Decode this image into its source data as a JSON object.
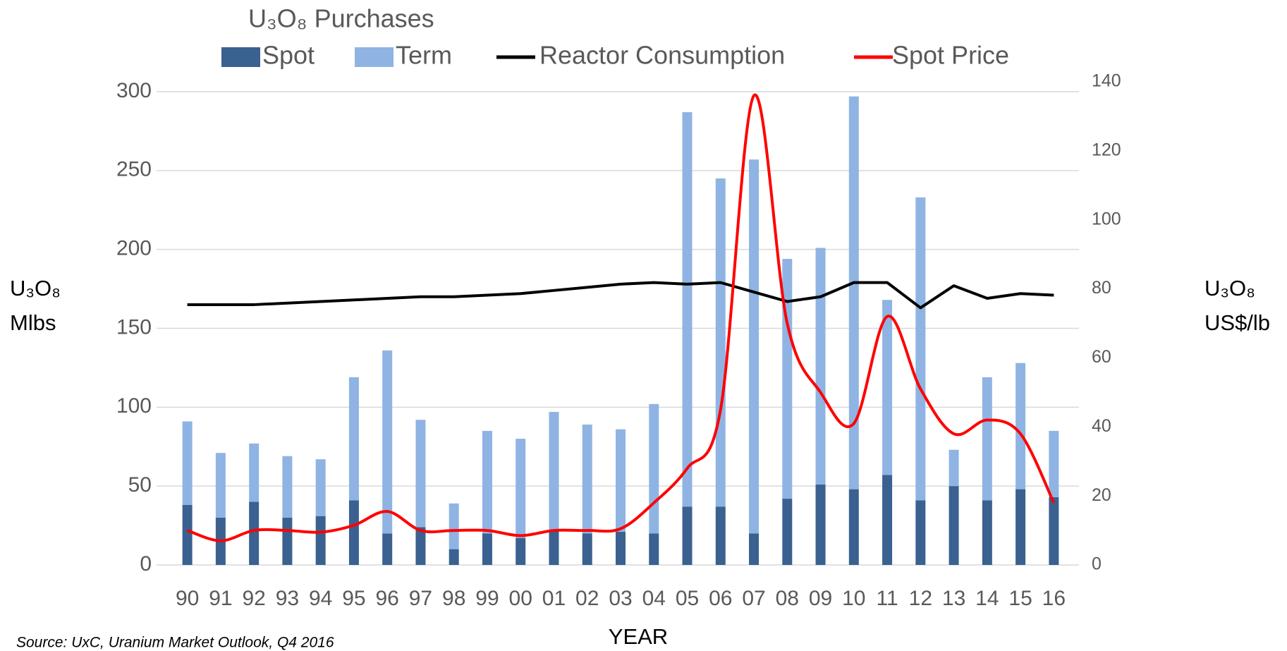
{
  "chart_data": {
    "type": "bar_line",
    "legend_title": "U₃O₈ Purchases",
    "ylabel_lines": [
      "U₃O₈",
      "Mlbs"
    ],
    "y2label_lines": [
      "U₃O₈",
      "US$/lb"
    ],
    "xlabel": "YEAR",
    "source": "Source: UxC, Uranium Market Outlook, Q4 2016",
    "categories": [
      "90",
      "91",
      "92",
      "93",
      "94",
      "95",
      "96",
      "97",
      "98",
      "99",
      "00",
      "01",
      "02",
      "03",
      "04",
      "05",
      "06",
      "07",
      "08",
      "09",
      "10",
      "11",
      "12",
      "13",
      "14",
      "15",
      "16"
    ],
    "series": [
      {
        "name": "Spot",
        "kind": "bar",
        "color": "#3a6190",
        "values": [
          38,
          30,
          40,
          30,
          31,
          41,
          20,
          24,
          10,
          20,
          17,
          22,
          20,
          21,
          20,
          37,
          37,
          20,
          42,
          51,
          48,
          57,
          41,
          50,
          41,
          48,
          43
        ]
      },
      {
        "name": "Term",
        "kind": "bar",
        "color": "#8fb4e3",
        "values": [
          53,
          41,
          37,
          39,
          36,
          78,
          116,
          68,
          29,
          65,
          63,
          75,
          69,
          65,
          82,
          250,
          208,
          237,
          152,
          150,
          249,
          111,
          192,
          23,
          78,
          80,
          42
        ]
      },
      {
        "name": "Reactor Consumption",
        "kind": "line",
        "color": "#000000",
        "values": [
          165,
          165,
          165,
          166,
          167,
          168,
          169,
          170,
          170,
          171,
          172,
          174,
          176,
          178,
          179,
          178,
          179,
          173,
          167,
          170,
          179,
          179,
          163,
          177,
          169,
          172,
          171
        ]
      },
      {
        "name": "Spot Price",
        "kind": "line",
        "color": "#ff0000",
        "axis": "y2",
        "values": [
          10,
          7,
          10,
          10,
          9.5,
          11.5,
          15.5,
          10,
          10,
          10,
          8.5,
          10,
          10,
          10.5,
          18,
          28,
          45,
          136,
          70,
          50,
          41,
          72,
          51,
          38,
          42,
          38,
          18
        ]
      }
    ],
    "ylim": [
      0,
      306.25
    ],
    "yticks": [
      0,
      50,
      100,
      150,
      200,
      250,
      300
    ],
    "y2lim": [
      0,
      140
    ],
    "y2ticks": [
      0,
      20,
      40,
      60,
      80,
      100,
      120,
      140
    ],
    "grid": true
  }
}
